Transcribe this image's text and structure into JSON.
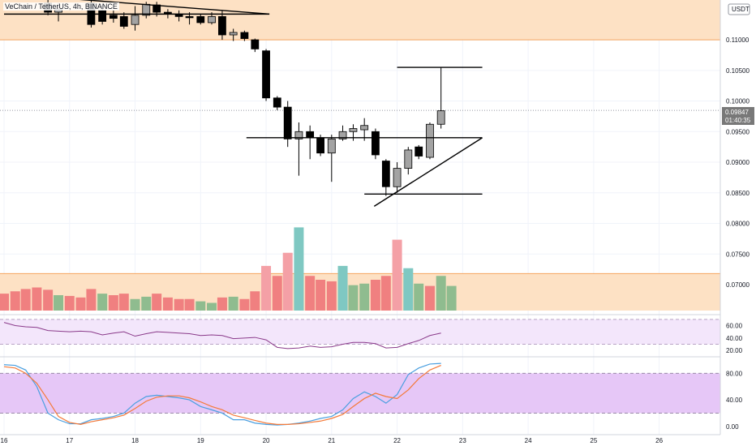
{
  "header": {
    "title": "VeChain / TetherUS, 4h, BINANCE",
    "quote_currency": "USDT"
  },
  "price_tag": {
    "price": "0.09847",
    "countdown": "01:40:35"
  },
  "colors": {
    "up": "#a3a3a3",
    "down": "#000000",
    "vol_up": "#8fbc8f",
    "vol_down": "#f08080",
    "vol_up_hi": "#7fc8c2",
    "vol_down_hi": "#f4a0a6",
    "zone": "#fde1c4",
    "zone_line": "#f4a460",
    "rsi": "#8a3a8a",
    "rsi_band": "#f3e6fb",
    "stoch_k": "#4a9fe0",
    "stoch_d": "#f47a3a",
    "stoch_band": "#e6c7f7"
  },
  "chart_data": [
    {
      "type": "candlestick",
      "name": "price",
      "y_ticks": [
        "0.11000",
        "0.10500",
        "0.10000",
        "0.09500",
        "0.09000",
        "0.08500",
        "0.08000",
        "0.07500",
        "0.07000"
      ],
      "ylim": [
        0.0655,
        0.1165
      ],
      "x_ticks": [
        "16",
        "17",
        "18",
        "19",
        "20",
        "21",
        "22",
        "23",
        "24",
        "25",
        "26"
      ],
      "x_tick_values": [
        16,
        17,
        18,
        19,
        20,
        21,
        22,
        23,
        24,
        25,
        26
      ],
      "xlim": [
        16.0,
        26.5
      ],
      "candles": [
        {
          "t": 16.67,
          "o": 0.116,
          "h": 0.1165,
          "l": 0.114,
          "c": 0.1145
        },
        {
          "t": 16.83,
          "o": 0.1145,
          "h": 0.116,
          "l": 0.113,
          "c": 0.115
        },
        {
          "t": 17.33,
          "o": 0.116,
          "h": 0.1165,
          "l": 0.112,
          "c": 0.1125
        },
        {
          "t": 17.5,
          "o": 0.1148,
          "h": 0.1158,
          "l": 0.1125,
          "c": 0.113
        },
        {
          "t": 17.67,
          "o": 0.114,
          "h": 0.1148,
          "l": 0.1128,
          "c": 0.1135
        },
        {
          "t": 17.83,
          "o": 0.1138,
          "h": 0.1145,
          "l": 0.1118,
          "c": 0.1122
        },
        {
          "t": 18.0,
          "o": 0.1125,
          "h": 0.1155,
          "l": 0.1115,
          "c": 0.114
        },
        {
          "t": 18.17,
          "o": 0.114,
          "h": 0.1162,
          "l": 0.1135,
          "c": 0.1158
        },
        {
          "t": 18.33,
          "o": 0.1157,
          "h": 0.1162,
          "l": 0.1138,
          "c": 0.1145
        },
        {
          "t": 18.5,
          "o": 0.1145,
          "h": 0.115,
          "l": 0.1135,
          "c": 0.1142
        },
        {
          "t": 18.67,
          "o": 0.1142,
          "h": 0.1148,
          "l": 0.113,
          "c": 0.1138
        },
        {
          "t": 18.83,
          "o": 0.1138,
          "h": 0.1145,
          "l": 0.1125,
          "c": 0.1137
        },
        {
          "t": 19.0,
          "o": 0.1138,
          "h": 0.1142,
          "l": 0.1125,
          "c": 0.1128
        },
        {
          "t": 19.17,
          "o": 0.1128,
          "h": 0.1145,
          "l": 0.1125,
          "c": 0.1138
        },
        {
          "t": 19.33,
          "o": 0.1138,
          "h": 0.1148,
          "l": 0.11,
          "c": 0.1108
        },
        {
          "t": 19.5,
          "o": 0.1108,
          "h": 0.1118,
          "l": 0.1098,
          "c": 0.1112
        },
        {
          "t": 19.67,
          "o": 0.1112,
          "h": 0.1115,
          "l": 0.1098,
          "c": 0.1102
        },
        {
          "t": 19.83,
          "o": 0.11,
          "h": 0.1102,
          "l": 0.108,
          "c": 0.1085
        },
        {
          "t": 20.0,
          "o": 0.1082,
          "h": 0.1085,
          "l": 0.1,
          "c": 0.1005
        },
        {
          "t": 20.17,
          "o": 0.1005,
          "h": 0.1008,
          "l": 0.0985,
          "c": 0.099
        },
        {
          "t": 20.33,
          "o": 0.099,
          "h": 0.1,
          "l": 0.0925,
          "c": 0.0938
        },
        {
          "t": 20.5,
          "o": 0.0938,
          "h": 0.0965,
          "l": 0.0878,
          "c": 0.095
        },
        {
          "t": 20.67,
          "o": 0.095,
          "h": 0.096,
          "l": 0.0905,
          "c": 0.094
        },
        {
          "t": 20.83,
          "o": 0.094,
          "h": 0.0945,
          "l": 0.091,
          "c": 0.0915
        },
        {
          "t": 21.0,
          "o": 0.0915,
          "h": 0.0945,
          "l": 0.0868,
          "c": 0.0938
        },
        {
          "t": 21.17,
          "o": 0.0938,
          "h": 0.096,
          "l": 0.0935,
          "c": 0.095
        },
        {
          "t": 21.33,
          "o": 0.095,
          "h": 0.0962,
          "l": 0.0935,
          "c": 0.0955
        },
        {
          "t": 21.5,
          "o": 0.0953,
          "h": 0.0972,
          "l": 0.0935,
          "c": 0.096
        },
        {
          "t": 21.67,
          "o": 0.095,
          "h": 0.0955,
          "l": 0.0905,
          "c": 0.0912
        },
        {
          "t": 21.83,
          "o": 0.0902,
          "h": 0.0905,
          "l": 0.0845,
          "c": 0.086
        },
        {
          "t": 22.0,
          "o": 0.086,
          "h": 0.09,
          "l": 0.085,
          "c": 0.089
        },
        {
          "t": 22.17,
          "o": 0.089,
          "h": 0.0925,
          "l": 0.088,
          "c": 0.092
        },
        {
          "t": 22.33,
          "o": 0.0925,
          "h": 0.0928,
          "l": 0.0905,
          "c": 0.091
        },
        {
          "t": 22.5,
          "o": 0.0908,
          "h": 0.0965,
          "l": 0.0905,
          "c": 0.0962
        },
        {
          "t": 22.67,
          "o": 0.0962,
          "h": 0.1055,
          "l": 0.0955,
          "c": 0.0984
        }
      ],
      "zone": [
        0.11,
        0.1165
      ],
      "lines": [
        {
          "x1": 16.0,
          "y1": 0.1142,
          "x2": 20.05,
          "y2": 0.1142
        },
        {
          "x1": 16.9,
          "y1": 0.1168,
          "x2": 20.05,
          "y2": 0.1142
        },
        {
          "x1": 19.7,
          "y1": 0.094,
          "x2": 23.3,
          "y2": 0.094
        },
        {
          "x1": 21.5,
          "y1": 0.0848,
          "x2": 23.3,
          "y2": 0.0848
        },
        {
          "x1": 21.65,
          "y1": 0.0828,
          "x2": 23.3,
          "y2": 0.094
        },
        {
          "x1": 22.0,
          "y1": 0.1055,
          "x2": 23.3,
          "y2": 0.1055
        }
      ]
    },
    {
      "type": "bar",
      "name": "volume",
      "ylim": [
        0,
        100
      ],
      "band": [
        0,
        48
      ],
      "bars": [
        {
          "t": 16.0,
          "v": 22,
          "up": false
        },
        {
          "t": 16.17,
          "v": 25,
          "up": false
        },
        {
          "t": 16.33,
          "v": 28,
          "up": false
        },
        {
          "t": 16.5,
          "v": 30,
          "up": false
        },
        {
          "t": 16.67,
          "v": 27,
          "up": false
        },
        {
          "t": 16.83,
          "v": 20,
          "up": true
        },
        {
          "t": 17.0,
          "v": 19,
          "up": false
        },
        {
          "t": 17.17,
          "v": 17,
          "up": false
        },
        {
          "t": 17.33,
          "v": 28,
          "up": false
        },
        {
          "t": 17.5,
          "v": 22,
          "up": true
        },
        {
          "t": 17.67,
          "v": 20,
          "up": false
        },
        {
          "t": 17.83,
          "v": 22,
          "up": false
        },
        {
          "t": 18.0,
          "v": 15,
          "up": true
        },
        {
          "t": 18.17,
          "v": 18,
          "up": true
        },
        {
          "t": 18.33,
          "v": 22,
          "up": false
        },
        {
          "t": 18.5,
          "v": 17,
          "up": false
        },
        {
          "t": 18.67,
          "v": 15,
          "up": false
        },
        {
          "t": 18.83,
          "v": 15,
          "up": false
        },
        {
          "t": 19.0,
          "v": 12,
          "up": true
        },
        {
          "t": 19.17,
          "v": 10,
          "up": true
        },
        {
          "t": 19.33,
          "v": 17,
          "up": false
        },
        {
          "t": 19.5,
          "v": 18,
          "up": true
        },
        {
          "t": 19.67,
          "v": 15,
          "up": false
        },
        {
          "t": 19.83,
          "v": 25,
          "up": false
        },
        {
          "t": 20.0,
          "v": 58,
          "up": false,
          "hi": true
        },
        {
          "t": 20.17,
          "v": 45,
          "up": false
        },
        {
          "t": 20.33,
          "v": 75,
          "up": false,
          "hi": true
        },
        {
          "t": 20.5,
          "v": 108,
          "up": true,
          "hi": true
        },
        {
          "t": 20.67,
          "v": 45,
          "up": false
        },
        {
          "t": 20.83,
          "v": 40,
          "up": false
        },
        {
          "t": 21.0,
          "v": 38,
          "up": false
        },
        {
          "t": 21.17,
          "v": 58,
          "up": true,
          "hi": true
        },
        {
          "t": 21.33,
          "v": 33,
          "up": true
        },
        {
          "t": 21.5,
          "v": 35,
          "up": true
        },
        {
          "t": 21.67,
          "v": 40,
          "up": false
        },
        {
          "t": 21.83,
          "v": 45,
          "up": false
        },
        {
          "t": 22.0,
          "v": 92,
          "up": false,
          "hi": true
        },
        {
          "t": 22.17,
          "v": 55,
          "up": true,
          "hi": true
        },
        {
          "t": 22.33,
          "v": 35,
          "up": true
        },
        {
          "t": 22.5,
          "v": 32,
          "up": false
        },
        {
          "t": 22.67,
          "v": 45,
          "up": true
        },
        {
          "t": 22.83,
          "v": 32,
          "up": true
        }
      ]
    },
    {
      "type": "line",
      "name": "rsi",
      "y_ticks": [
        "60.00",
        "40.00",
        "20.00"
      ],
      "y_tick_values": [
        60,
        40,
        20
      ],
      "ylim": [
        15,
        75
      ],
      "band": [
        30,
        70
      ],
      "x": [
        16.0,
        16.17,
        16.33,
        16.5,
        16.67,
        16.83,
        17.0,
        17.17,
        17.33,
        17.5,
        17.67,
        17.83,
        18.0,
        18.17,
        18.33,
        18.5,
        18.67,
        18.83,
        19.0,
        19.17,
        19.33,
        19.5,
        19.67,
        19.83,
        20.0,
        20.17,
        20.33,
        20.5,
        20.67,
        20.83,
        21.0,
        21.17,
        21.33,
        21.5,
        21.67,
        21.83,
        22.0,
        22.17,
        22.33,
        22.5,
        22.67
      ],
      "values": [
        65,
        60,
        58,
        57,
        52,
        51,
        50,
        51,
        50,
        45,
        48,
        50,
        43,
        47,
        50,
        49,
        48,
        47,
        44,
        45,
        44,
        39,
        40,
        41,
        37,
        25,
        23,
        24,
        27,
        25,
        26,
        30,
        33,
        33,
        31,
        24,
        25,
        31,
        36,
        44,
        48
      ]
    },
    {
      "type": "line",
      "name": "stoch",
      "y_ticks": [
        "80.00",
        "40.00",
        "0.00"
      ],
      "y_tick_values": [
        80,
        40,
        0
      ],
      "ylim": [
        -10,
        100
      ],
      "band": [
        20,
        80
      ],
      "x": [
        16.0,
        16.17,
        16.33,
        16.5,
        16.67,
        16.83,
        17.0,
        17.17,
        17.33,
        17.5,
        17.67,
        17.83,
        18.0,
        18.17,
        18.33,
        18.5,
        18.67,
        18.83,
        19.0,
        19.17,
        19.33,
        19.5,
        19.67,
        19.83,
        20.0,
        20.17,
        20.33,
        20.5,
        20.67,
        20.83,
        21.0,
        21.17,
        21.33,
        21.5,
        21.67,
        21.83,
        22.0,
        22.17,
        22.33,
        22.5,
        22.67
      ],
      "series": [
        {
          "key": "k",
          "values": [
            93,
            92,
            85,
            60,
            20,
            10,
            4,
            4,
            10,
            12,
            15,
            20,
            35,
            45,
            47,
            45,
            43,
            40,
            30,
            25,
            20,
            10,
            10,
            5,
            3,
            2,
            3,
            5,
            8,
            12,
            15,
            25,
            42,
            52,
            45,
            35,
            48,
            78,
            88,
            94,
            95
          ]
        },
        {
          "key": "d",
          "values": [
            90,
            88,
            80,
            65,
            40,
            15,
            6,
            3,
            7,
            10,
            13,
            17,
            27,
            38,
            44,
            46,
            46,
            43,
            37,
            30,
            25,
            17,
            13,
            9,
            5,
            3,
            3,
            4,
            6,
            8,
            12,
            18,
            30,
            42,
            50,
            45,
            42,
            55,
            72,
            85,
            92
          ]
        }
      ]
    }
  ]
}
